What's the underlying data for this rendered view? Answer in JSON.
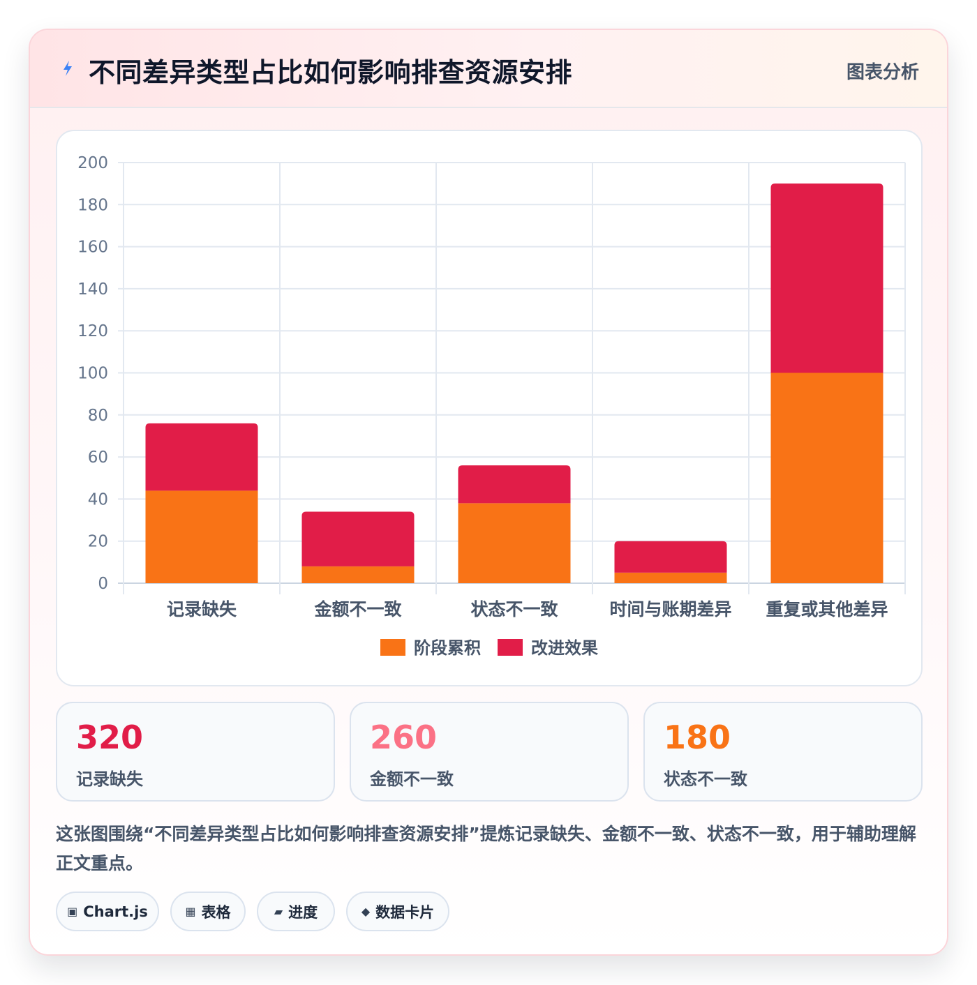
{
  "header": {
    "title": "不同差异类型占比如何影响排查资源安排",
    "badge": "图表分析",
    "icon": "lightning-icon"
  },
  "chart_data": {
    "type": "bar",
    "stacked": true,
    "categories": [
      "记录缺失",
      "金额不一致",
      "状态不一致",
      "时间与账期差异",
      "重复或其他差异"
    ],
    "series": [
      {
        "name": "阶段累积",
        "color": "#f97316",
        "values": [
          44,
          8,
          38,
          5,
          100
        ]
      },
      {
        "name": "改进效果",
        "color": "#e11d48",
        "values": [
          32,
          26,
          18,
          15,
          90
        ]
      }
    ],
    "ylim": [
      0,
      200
    ],
    "yticks": [
      0,
      20,
      40,
      60,
      80,
      100,
      120,
      140,
      160,
      180,
      200
    ],
    "grid": true,
    "legend_position": "bottom"
  },
  "stats": [
    {
      "value": "320",
      "label": "记录缺失",
      "color": "#e11d48"
    },
    {
      "value": "260",
      "label": "金额不一致",
      "color": "#fb7185"
    },
    {
      "value": "180",
      "label": "状态不一致",
      "color": "#f97316"
    }
  ],
  "description": "这张图围绕“不同差异类型占比如何影响排查资源安排”提炼记录缺失、金额不一致、状态不一致，用于辅助理解正文重点。",
  "tags": [
    {
      "icon": "▣",
      "icon_name": "chart-icon",
      "label": "Chart.js"
    },
    {
      "icon": "▦",
      "icon_name": "table-icon",
      "label": "表格"
    },
    {
      "icon": "▰",
      "icon_name": "progress-icon",
      "label": "进度"
    },
    {
      "icon": "◆",
      "icon_name": "diamond-icon",
      "label": "数据卡片"
    }
  ]
}
